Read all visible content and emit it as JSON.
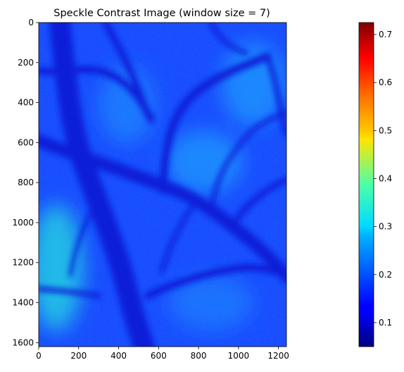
{
  "chart_data": {
    "type": "heatmap",
    "title": "Speckle Contrast Image (window size = 7)",
    "xlabel": "",
    "ylabel": "",
    "x_axis": {
      "range": [
        0,
        1240
      ],
      "ticks": [
        0,
        200,
        400,
        600,
        800,
        1000,
        1200
      ],
      "tick_labels": [
        "0",
        "200",
        "400",
        "600",
        "800",
        "1000",
        "1200"
      ]
    },
    "y_axis": {
      "range": [
        0,
        1620
      ],
      "inverted": true,
      "ticks": [
        0,
        200,
        400,
        600,
        800,
        1000,
        1200,
        1400,
        1600
      ],
      "tick_labels": [
        "0",
        "200",
        "400",
        "600",
        "800",
        "1000",
        "1200",
        "1400",
        "1600"
      ]
    },
    "colorbar": {
      "colormap": "jet",
      "range": [
        0.05,
        0.725
      ],
      "ticks": [
        0.1,
        0.2,
        0.3,
        0.4,
        0.5,
        0.6,
        0.7
      ],
      "tick_labels": [
        "0.1",
        "0.2",
        "0.3",
        "0.4",
        "0.5",
        "0.6",
        "0.7"
      ]
    },
    "grid": false,
    "features": {
      "background_value": 0.2,
      "vessel_value": 0.08,
      "bright_region_value": 0.3
    }
  }
}
